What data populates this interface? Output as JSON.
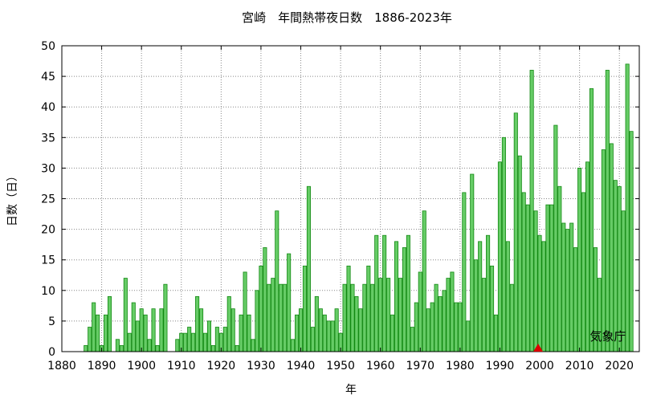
{
  "chart_data": {
    "type": "bar",
    "title": "宮崎　年間熱帯夜日数　1886-2023年",
    "xlabel": "年",
    "ylabel": "日数（日）",
    "credit": "気象庁",
    "ylim": [
      0,
      50
    ],
    "xlim": [
      1880,
      2025
    ],
    "yticks": [
      0,
      5,
      10,
      15,
      20,
      25,
      30,
      35,
      40,
      45,
      50
    ],
    "xticks": [
      1880,
      1890,
      1900,
      1910,
      1920,
      1930,
      1940,
      1950,
      1960,
      1970,
      1980,
      1990,
      2000,
      2010,
      2020
    ],
    "grid": true,
    "bar_color": "#66cc66",
    "bar_edge_color": "#118811",
    "marker": {
      "x": 1999.6,
      "y": 0,
      "shape": "triangle",
      "color": "#dd0000"
    },
    "years": [
      1886,
      1887,
      1888,
      1889,
      1890,
      1891,
      1892,
      1893,
      1894,
      1895,
      1896,
      1897,
      1898,
      1899,
      1900,
      1901,
      1902,
      1903,
      1904,
      1905,
      1906,
      1907,
      1908,
      1909,
      1910,
      1911,
      1912,
      1913,
      1914,
      1915,
      1916,
      1917,
      1918,
      1919,
      1920,
      1921,
      1922,
      1923,
      1924,
      1925,
      1926,
      1927,
      1928,
      1929,
      1930,
      1931,
      1932,
      1933,
      1934,
      1935,
      1936,
      1937,
      1938,
      1939,
      1940,
      1941,
      1942,
      1943,
      1944,
      1945,
      1946,
      1947,
      1948,
      1949,
      1950,
      1951,
      1952,
      1953,
      1954,
      1955,
      1956,
      1957,
      1958,
      1959,
      1960,
      1961,
      1962,
      1963,
      1964,
      1965,
      1966,
      1967,
      1968,
      1969,
      1970,
      1971,
      1972,
      1973,
      1974,
      1975,
      1976,
      1977,
      1978,
      1979,
      1980,
      1981,
      1982,
      1983,
      1984,
      1985,
      1986,
      1987,
      1988,
      1989,
      1990,
      1991,
      1992,
      1993,
      1994,
      1995,
      1996,
      1997,
      1998,
      1999,
      2000,
      2001,
      2002,
      2003,
      2004,
      2005,
      2006,
      2007,
      2008,
      2009,
      2010,
      2011,
      2012,
      2013,
      2014,
      2015,
      2016,
      2017,
      2018,
      2019,
      2020,
      2021,
      2022,
      2023
    ],
    "values": [
      1,
      4,
      8,
      6,
      1,
      6,
      9,
      0,
      2,
      1,
      12,
      3,
      8,
      5,
      7,
      6,
      2,
      7,
      1,
      7,
      11,
      0,
      0,
      2,
      3,
      3,
      4,
      3,
      9,
      7,
      3,
      5,
      1,
      4,
      3,
      4,
      9,
      7,
      1,
      6,
      13,
      6,
      2,
      10,
      14,
      17,
      11,
      12,
      23,
      11,
      11,
      16,
      2,
      6,
      7,
      14,
      27,
      4,
      9,
      7,
      6,
      5,
      5,
      7,
      3,
      11,
      14,
      11,
      9,
      7,
      11,
      14,
      11,
      19,
      12,
      19,
      12,
      6,
      18,
      12,
      17,
      19,
      4,
      8,
      13,
      23,
      7,
      8,
      11,
      9,
      10,
      12,
      13,
      8,
      8,
      26,
      5,
      29,
      15,
      18,
      12,
      19,
      14,
      6,
      31,
      35,
      18,
      11,
      39,
      32,
      26,
      24,
      46,
      23,
      19,
      18,
      24,
      24,
      37,
      27,
      21,
      20,
      21,
      17,
      30,
      26,
      31,
      43,
      17,
      12,
      33,
      46,
      34,
      28,
      27,
      23,
      47,
      36
    ]
  }
}
